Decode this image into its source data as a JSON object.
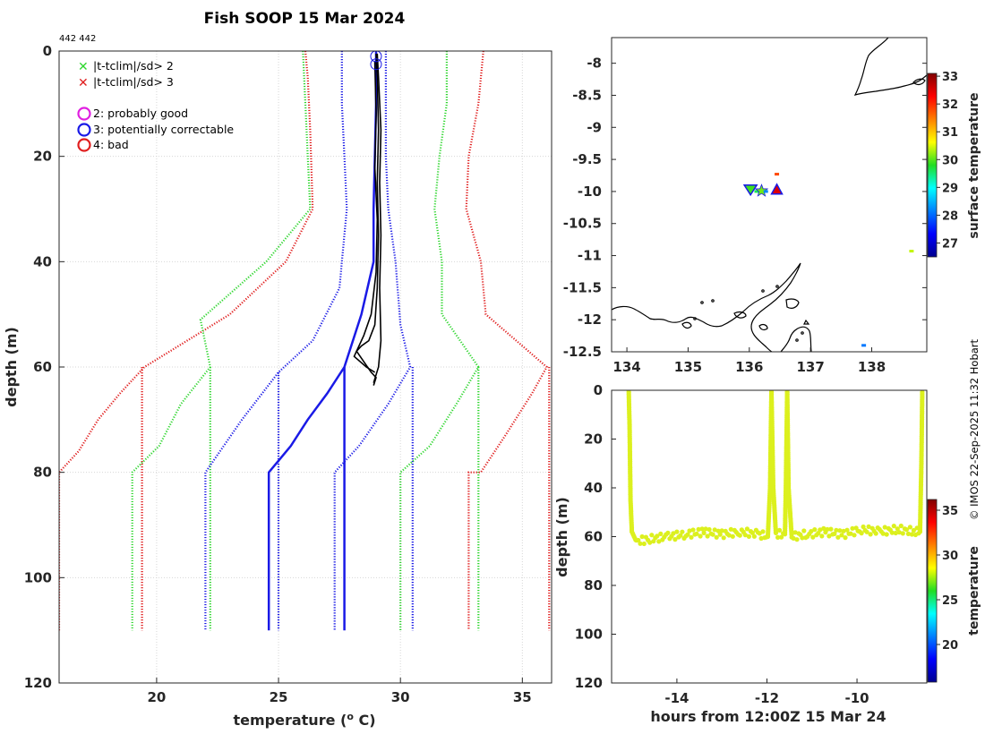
{
  "title": "Fish SOOP 15 Mar 2024",
  "counts": "442 442",
  "credit": "© IMOS 22-Sep-2025 11:32 Hobart",
  "legend": {
    "x2": "|t-tclim|/sd> 2",
    "x3": "|t-tclim|/sd> 3",
    "q2": "2: probably good",
    "q3": "3: potentially correctable",
    "q4": "4: bad"
  },
  "colors": {
    "green": "#2fd62f",
    "red": "#e01f1f",
    "blue": "#1a1ae6",
    "magenta": "#e020e0",
    "profile": "#000000",
    "time_points": "#dcf01e"
  },
  "chart_data": [
    {
      "type": "line",
      "title": "Fish SOOP 15 Mar 2024",
      "xlabel": "temperature (o C)",
      "xlabel_main": "temperature (",
      "xlabel_sup": "o",
      "xlabel_tail": " C)",
      "ylabel": "depth (m)",
      "xlim": [
        16,
        36.2
      ],
      "ylim": [
        0,
        120
      ],
      "y_inverted": true,
      "xticks": [
        "20",
        "25",
        "30",
        "35"
      ],
      "xtick_values": [
        20,
        25,
        30,
        35
      ],
      "yticks": [
        "0",
        "20",
        "40",
        "60",
        "80",
        "100",
        "120"
      ],
      "ytick_values": [
        0,
        20,
        40,
        60,
        80,
        100,
        120
      ],
      "series": [
        {
          "name": "clim -3sd",
          "color": "red",
          "style": "dotted",
          "points": [
            [
              26.1,
              0
            ],
            [
              26.2,
              5
            ],
            [
              26.3,
              15
            ],
            [
              26.4,
              30
            ],
            [
              25.3,
              40
            ],
            [
              23.0,
              50
            ],
            [
              19.5,
              60
            ],
            [
              18.5,
              65
            ],
            [
              17.6,
              70
            ],
            [
              16.8,
              76
            ],
            [
              16.0,
              80
            ],
            [
              16.0,
              110
            ]
          ]
        },
        {
          "name": "clim -3sd (deep)",
          "color": "red",
          "style": "dotted",
          "points": [
            [
              19.4,
              60
            ],
            [
              19.4,
              110
            ]
          ]
        },
        {
          "name": "clim -2sd",
          "color": "green",
          "style": "dotted",
          "points": [
            [
              26.0,
              0
            ],
            [
              26.1,
              10
            ],
            [
              26.2,
              20
            ],
            [
              26.3,
              30
            ],
            [
              24.5,
              40
            ],
            [
              21.8,
              51
            ],
            [
              22.2,
              60
            ],
            [
              21.0,
              67
            ],
            [
              20.1,
              75
            ],
            [
              19.0,
              80
            ],
            [
              19.0,
              110
            ]
          ]
        },
        {
          "name": "clim -2sd (deep)",
          "color": "green",
          "style": "dotted",
          "points": [
            [
              22.2,
              60
            ],
            [
              22.2,
              110
            ]
          ]
        },
        {
          "name": "clim -1sd",
          "color": "blue",
          "style": "dotted",
          "points": [
            [
              27.6,
              0
            ],
            [
              27.6,
              10
            ],
            [
              27.7,
              20
            ],
            [
              27.8,
              30
            ],
            [
              27.6,
              40
            ],
            [
              27.5,
              45
            ],
            [
              26.4,
              55
            ],
            [
              25.0,
              61
            ],
            [
              23.5,
              70
            ],
            [
              22.0,
              80
            ],
            [
              22.0,
              110
            ]
          ]
        },
        {
          "name": "clim -1sd (deep)",
          "color": "blue",
          "style": "dotted",
          "points": [
            [
              25.0,
              61
            ],
            [
              25.0,
              110
            ]
          ]
        },
        {
          "name": "clim +1sd",
          "color": "blue",
          "style": "dotted",
          "points": [
            [
              29.4,
              0
            ],
            [
              29.4,
              20
            ],
            [
              29.5,
              30
            ],
            [
              29.8,
              40
            ],
            [
              30.0,
              52
            ],
            [
              30.4,
              60
            ],
            [
              29.5,
              67
            ],
            [
              28.3,
              75
            ],
            [
              27.3,
              80
            ],
            [
              27.3,
              110
            ]
          ]
        },
        {
          "name": "clim +1sd (deep)",
          "color": "blue",
          "style": "dotted",
          "points": [
            [
              30.5,
              60
            ],
            [
              30.5,
              110
            ]
          ]
        },
        {
          "name": "clim +2sd",
          "color": "green",
          "style": "dotted",
          "points": [
            [
              31.9,
              0
            ],
            [
              31.9,
              10
            ],
            [
              31.6,
              20
            ],
            [
              31.4,
              30
            ],
            [
              31.7,
              40
            ],
            [
              31.7,
              50
            ],
            [
              33.2,
              60
            ],
            [
              32.3,
              67
            ],
            [
              31.2,
              75
            ],
            [
              30.0,
              80
            ],
            [
              30.0,
              110
            ]
          ]
        },
        {
          "name": "clim +2sd (deep)",
          "color": "green",
          "style": "dotted",
          "points": [
            [
              33.2,
              60
            ],
            [
              33.2,
              110
            ]
          ]
        },
        {
          "name": "clim +3sd",
          "color": "red",
          "style": "dotted",
          "points": [
            [
              33.4,
              0
            ],
            [
              33.2,
              10
            ],
            [
              32.8,
              20
            ],
            [
              32.7,
              30
            ],
            [
              33.3,
              40
            ],
            [
              33.5,
              50
            ],
            [
              36.0,
              60
            ],
            [
              35.4,
              65
            ],
            [
              34.3,
              73
            ],
            [
              33.3,
              80
            ],
            [
              32.8,
              80
            ],
            [
              32.8,
              110
            ]
          ]
        },
        {
          "name": "clim +3sd (deep)",
          "color": "red",
          "style": "dotted",
          "points": [
            [
              36.1,
              60
            ],
            [
              36.1,
              110
            ]
          ]
        },
        {
          "name": "climatology mean",
          "color": "blue",
          "style": "solid",
          "points": [
            [
              29.0,
              0
            ],
            [
              29.0,
              10
            ],
            [
              28.95,
              20
            ],
            [
              28.9,
              30
            ],
            [
              28.9,
              40
            ],
            [
              28.4,
              50
            ],
            [
              27.7,
              60
            ],
            [
              27.0,
              65
            ],
            [
              26.2,
              70
            ],
            [
              25.5,
              75
            ],
            [
              24.6,
              80
            ],
            [
              24.6,
              110
            ]
          ]
        },
        {
          "name": "climatology mean (deep)",
          "color": "blue",
          "style": "solid",
          "points": [
            [
              27.7,
              60
            ],
            [
              27.7,
              110
            ]
          ]
        },
        {
          "name": "profile down",
          "color": "profile",
          "style": "solid",
          "points": [
            [
              29.0,
              0.5
            ],
            [
              29.05,
              5
            ],
            [
              29.1,
              15
            ],
            [
              29.05,
              25
            ],
            [
              29.1,
              35
            ],
            [
              29.05,
              45
            ],
            [
              28.95,
              52
            ],
            [
              28.7,
              55
            ],
            [
              28.4,
              56
            ],
            [
              28.2,
              57
            ],
            [
              28.5,
              59
            ],
            [
              28.8,
              61
            ],
            [
              29.0,
              62
            ],
            [
              28.9,
              63.5
            ]
          ]
        },
        {
          "name": "profile up",
          "color": "profile",
          "style": "solid",
          "points": [
            [
              28.9,
              63
            ],
            [
              29.1,
              60
            ],
            [
              29.2,
              55
            ],
            [
              29.15,
              45
            ],
            [
              29.2,
              35
            ],
            [
              29.15,
              25
            ],
            [
              29.2,
              15
            ],
            [
              29.1,
              5
            ],
            [
              29.05,
              0.5
            ]
          ]
        },
        {
          "name": "profile mid",
          "color": "profile",
          "style": "solid",
          "points": [
            [
              28.95,
              2
            ],
            [
              29.0,
              12
            ],
            [
              28.95,
              22
            ],
            [
              29.05,
              32
            ],
            [
              29.0,
              42
            ],
            [
              28.8,
              50
            ],
            [
              28.5,
              54
            ],
            [
              28.1,
              58
            ],
            [
              28.6,
              60
            ],
            [
              28.95,
              61
            ]
          ]
        }
      ],
      "flags": [
        {
          "label": "3: potentially correctable",
          "x": 29.0,
          "y": 1,
          "color": "blue"
        },
        {
          "label": "3: potentially correctable",
          "x": 29.0,
          "y": 2.5,
          "color": "blue"
        }
      ]
    },
    {
      "type": "scatter",
      "xlim": [
        133.75,
        138.9
      ],
      "ylim": [
        -12.5,
        -7.6
      ],
      "xticks": [
        "134",
        "135",
        "136",
        "137",
        "138"
      ],
      "xtick_values": [
        134,
        135,
        136,
        137,
        138
      ],
      "yticks": [
        "-8",
        "-8.5",
        "-9",
        "-9.5",
        "-10",
        "-10.5",
        "-11",
        "-11.5",
        "-12",
        "-12.5"
      ],
      "ytick_values": [
        -8,
        -8.5,
        -9,
        -9.5,
        -10,
        -10.5,
        -11,
        -11.5,
        -12,
        -12.5
      ],
      "colorbar_label": "surface temperature",
      "colorbar_range": [
        26.5,
        33.1
      ],
      "colorbar_ticks": [
        "27",
        "28",
        "29",
        "30",
        "31",
        "32",
        "33"
      ],
      "colorbar_tick_values": [
        27,
        28,
        29,
        30,
        31,
        32,
        33
      ],
      "points": [
        {
          "lon": 136.02,
          "lat": -9.97,
          "temp": 29.9,
          "marker": "triangle-down",
          "edge": "blue"
        },
        {
          "lon": 136.12,
          "lat": -10.0,
          "temp": 29.6,
          "marker": "square"
        },
        {
          "lon": 136.2,
          "lat": -9.99,
          "temp": 30.1,
          "marker": "star"
        },
        {
          "lon": 136.27,
          "lat": -10.0,
          "temp": 28.2,
          "marker": "square"
        },
        {
          "lon": 136.45,
          "lat": -9.97,
          "temp": 32.5,
          "marker": "triangle-up",
          "edge": "blue"
        },
        {
          "lon": 136.45,
          "lat": -9.73,
          "temp": 31.8,
          "marker": "square"
        },
        {
          "lon": 137.87,
          "lat": -12.4,
          "temp": 28.1,
          "marker": "square"
        },
        {
          "lon": 138.65,
          "lat": -10.93,
          "temp": 30.4,
          "marker": "square"
        }
      ]
    },
    {
      "type": "scatter",
      "xlabel": "hours from 12:00Z 15 Mar 24",
      "ylabel": "depth (m)",
      "xlim": [
        -15.45,
        -8.45
      ],
      "ylim": [
        0,
        120
      ],
      "y_inverted": true,
      "xticks": [
        "-14",
        "-12",
        "-10"
      ],
      "xtick_values": [
        -14,
        -12,
        -10
      ],
      "yticks": [
        "0",
        "20",
        "40",
        "60",
        "80",
        "100",
        "120"
      ],
      "ytick_values": [
        0,
        20,
        40,
        60,
        80,
        100,
        120
      ],
      "colorbar_label": "temperature",
      "colorbar_range": [
        15.8,
        36.2
      ],
      "colorbar_ticks": [
        "20",
        "25",
        "30",
        "35"
      ],
      "colorbar_tick_values": [
        20,
        25,
        30,
        35
      ],
      "track": [
        [
          -15.07,
          0
        ],
        [
          -15.05,
          15
        ],
        [
          -15.03,
          45
        ],
        [
          -15.0,
          58
        ],
        [
          -14.9,
          62
        ],
        [
          -14.6,
          61
        ],
        [
          -14.2,
          60
        ],
        [
          -13.8,
          59
        ],
        [
          -13.4,
          58
        ],
        [
          -13.0,
          59
        ],
        [
          -12.6,
          58
        ],
        [
          -12.2,
          59
        ],
        [
          -11.98,
          60
        ],
        [
          -11.93,
          40
        ],
        [
          -11.9,
          0
        ],
        [
          -11.86,
          40
        ],
        [
          -11.8,
          59
        ],
        [
          -11.6,
          59
        ],
        [
          -11.58,
          40
        ],
        [
          -11.55,
          0
        ],
        [
          -11.52,
          40
        ],
        [
          -11.45,
          60
        ],
        [
          -11.1,
          59
        ],
        [
          -10.7,
          58
        ],
        [
          -10.3,
          59
        ],
        [
          -9.9,
          57
        ],
        [
          -9.5,
          58
        ],
        [
          -9.1,
          57
        ],
        [
          -8.7,
          58
        ],
        [
          -8.6,
          58
        ],
        [
          -8.57,
          30
        ],
        [
          -8.55,
          0
        ]
      ],
      "track_temp": 29.5
    }
  ]
}
